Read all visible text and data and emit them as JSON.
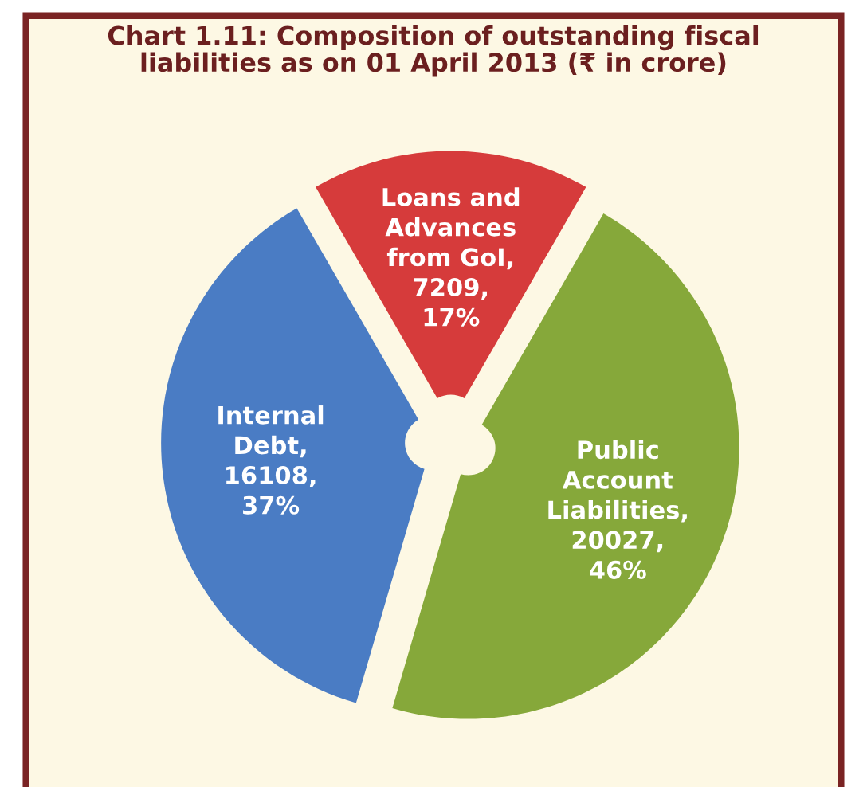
{
  "chart_data": {
    "type": "pie",
    "title": "Chart 1.11: Composition of outstanding fiscal\nliabilities as on 01 April 2013 (₹ in crore)",
    "categories": [
      "Loans and\nAdvances\nfrom GoI",
      "Public\nAccount\nLiabilities",
      "Internal\nDebt"
    ],
    "values": [
      7209,
      20027,
      16108
    ],
    "value_labels": [
      ",\n7209,\n17%",
      ",\n20027,\n46%",
      ",\n16108,\n37%"
    ],
    "colors": [
      "#d63b3b",
      "#86a83a",
      "#4a7cc4"
    ],
    "legend": false
  }
}
